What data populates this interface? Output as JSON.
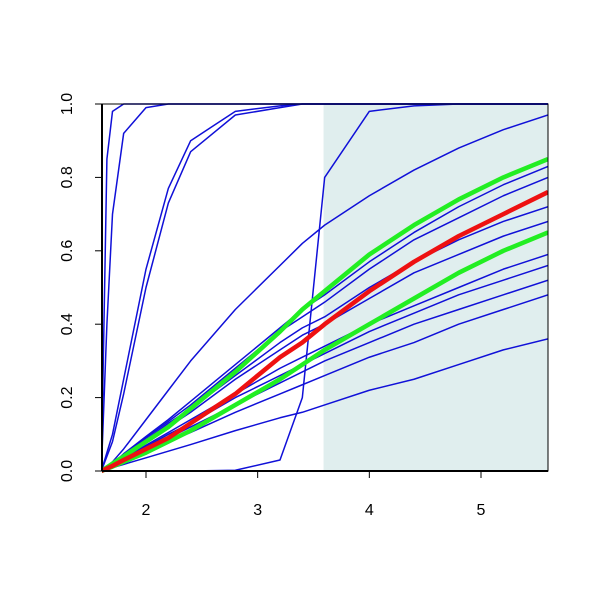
{
  "chart_data": {
    "type": "line",
    "x": [
      1.6,
      1.65,
      1.7,
      1.8,
      2.0,
      2.2,
      2.4,
      2.8,
      3.2,
      3.4,
      3.6,
      4.0,
      4.4,
      4.8,
      5.2,
      5.6
    ],
    "xlim": [
      1.606,
      5.6
    ],
    "ylim": [
      0,
      1
    ],
    "xticks": [
      2,
      3,
      4,
      5
    ],
    "yticks": [
      {
        "value": 0,
        "label": "0.0"
      },
      {
        "value": 0.2,
        "label": "0.2"
      },
      {
        "value": 0.4,
        "label": "0.4"
      },
      {
        "value": 0.6,
        "label": "0.6"
      },
      {
        "value": 0.8,
        "label": "0.8"
      },
      {
        "value": 1,
        "label": "1.0"
      }
    ],
    "shaded_xlim": [
      3.59,
      5.6
    ],
    "shade_color": "#e0eeee",
    "series": [
      {
        "color": "#1010d8",
        "linewidth": 1.5,
        "values": [
          0,
          0.85,
          0.98,
          1,
          1,
          1,
          1,
          1,
          1,
          1,
          1,
          1,
          1,
          1,
          1,
          1
        ]
      },
      {
        "color": "#1010d8",
        "linewidth": 1.5,
        "values": [
          0,
          0.4,
          0.7,
          0.92,
          0.99,
          1,
          1,
          1,
          1,
          1,
          1,
          1,
          1,
          1,
          1,
          1
        ]
      },
      {
        "color": "#1010d8",
        "linewidth": 1.5,
        "values": [
          0,
          0.05,
          0.1,
          0.25,
          0.55,
          0.77,
          0.9,
          0.98,
          0.995,
          1,
          1,
          1,
          1,
          1,
          1,
          1
        ]
      },
      {
        "color": "#1010d8",
        "linewidth": 1.5,
        "values": [
          0,
          0.04,
          0.08,
          0.21,
          0.5,
          0.73,
          0.87,
          0.97,
          0.99,
          1,
          1,
          1,
          1,
          1,
          1,
          1
        ]
      },
      {
        "color": "#1010d8",
        "linewidth": 1.5,
        "values": [
          0,
          0.012,
          0.025,
          0.06,
          0.14,
          0.22,
          0.3,
          0.44,
          0.56,
          0.62,
          0.67,
          0.75,
          0.82,
          0.88,
          0.93,
          0.97
        ]
      },
      {
        "color": "#1010d8",
        "linewidth": 1.5,
        "values": [
          0,
          0,
          0,
          0,
          0,
          0,
          0,
          0.002,
          0.03,
          0.2,
          0.8,
          0.98,
          0.995,
          1,
          1,
          1
        ]
      },
      {
        "color": "#1010d8",
        "linewidth": 1.5,
        "values": [
          0,
          0.005,
          0.009,
          0.018,
          0.036,
          0.054,
          0.072,
          0.11,
          0.145,
          0.16,
          0.18,
          0.22,
          0.25,
          0.29,
          0.33,
          0.36
        ]
      },
      {
        "color": "#1010d8",
        "linewidth": 1.5,
        "values": [
          0,
          0.007,
          0.013,
          0.027,
          0.054,
          0.08,
          0.105,
          0.16,
          0.21,
          0.235,
          0.26,
          0.31,
          0.35,
          0.4,
          0.44,
          0.48
        ]
      },
      {
        "color": "#1010d8",
        "linewidth": 1.5,
        "values": [
          0,
          0.007,
          0.014,
          0.03,
          0.06,
          0.09,
          0.12,
          0.18,
          0.24,
          0.27,
          0.3,
          0.35,
          0.4,
          0.44,
          0.48,
          0.52
        ]
      },
      {
        "color": "#1010d8",
        "linewidth": 1.5,
        "values": [
          0,
          0.008,
          0.016,
          0.033,
          0.066,
          0.1,
          0.13,
          0.2,
          0.26,
          0.29,
          0.32,
          0.38,
          0.43,
          0.48,
          0.52,
          0.56
        ]
      },
      {
        "color": "#1010d8",
        "linewidth": 1.5,
        "values": [
          0,
          0.008,
          0.017,
          0.035,
          0.07,
          0.105,
          0.14,
          0.21,
          0.28,
          0.31,
          0.34,
          0.4,
          0.45,
          0.5,
          0.55,
          0.59
        ]
      },
      {
        "color": "#1010d8",
        "linewidth": 1.5,
        "values": [
          0,
          0.009,
          0.018,
          0.04,
          0.08,
          0.12,
          0.16,
          0.25,
          0.33,
          0.37,
          0.4,
          0.47,
          0.54,
          0.59,
          0.64,
          0.68
        ]
      },
      {
        "color": "#1010d8",
        "linewidth": 1.5,
        "values": [
          0,
          0.009,
          0.019,
          0.042,
          0.085,
          0.13,
          0.17,
          0.26,
          0.35,
          0.39,
          0.42,
          0.5,
          0.57,
          0.63,
          0.68,
          0.72
        ]
      },
      {
        "color": "#1010d8",
        "linewidth": 1.5,
        "values": [
          0,
          0.01,
          0.02,
          0.045,
          0.09,
          0.135,
          0.18,
          0.28,
          0.38,
          0.42,
          0.46,
          0.55,
          0.63,
          0.69,
          0.75,
          0.8
        ]
      },
      {
        "color": "#1010d8",
        "linewidth": 1.5,
        "values": [
          0,
          0.01,
          0.02,
          0.047,
          0.094,
          0.14,
          0.19,
          0.29,
          0.39,
          0.44,
          0.48,
          0.57,
          0.65,
          0.72,
          0.78,
          0.83
        ]
      },
      {
        "color": "#22ee22",
        "linewidth": 4.5,
        "values": [
          0,
          0.01,
          0.02,
          0.04,
          0.08,
          0.12,
          0.17,
          0.27,
          0.38,
          0.44,
          0.49,
          0.59,
          0.67,
          0.74,
          0.8,
          0.85
        ]
      },
      {
        "color": "#22ee22",
        "linewidth": 4.5,
        "values": [
          0,
          0.006,
          0.012,
          0.025,
          0.05,
          0.08,
          0.11,
          0.18,
          0.25,
          0.29,
          0.33,
          0.4,
          0.47,
          0.54,
          0.6,
          0.65
        ]
      },
      {
        "color": "#ee1111",
        "linewidth": 4.5,
        "values": [
          0,
          0.007,
          0.014,
          0.03,
          0.06,
          0.09,
          0.13,
          0.21,
          0.31,
          0.35,
          0.4,
          0.49,
          0.57,
          0.64,
          0.7,
          0.76
        ]
      }
    ]
  }
}
